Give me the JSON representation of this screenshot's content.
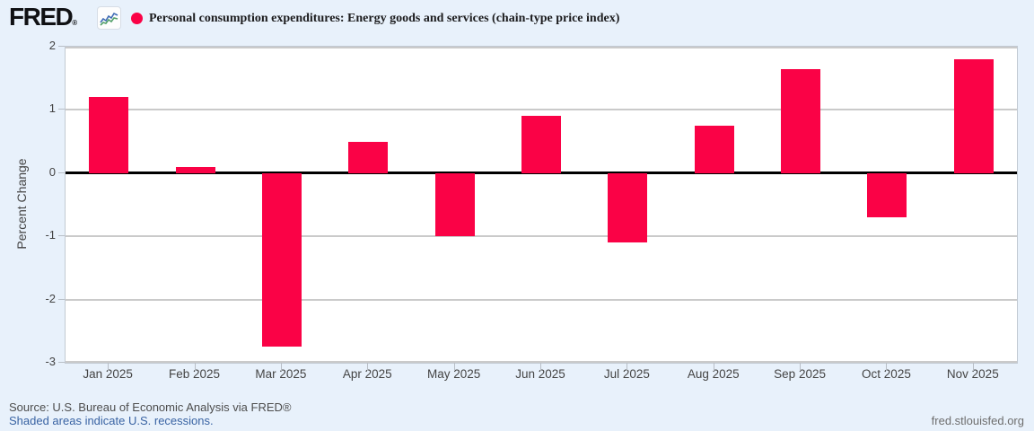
{
  "header": {
    "logo_text": "FRED",
    "logo_mark": "®",
    "title": "Personal consumption expenditures: Energy goods and services (chain-type price index)"
  },
  "chart_data": {
    "type": "bar",
    "title": "Personal consumption expenditures: Energy goods and services (chain-type price index)",
    "xlabel": "",
    "ylabel": "Percent Change",
    "ylim": [
      -3,
      2
    ],
    "yticks": [
      2,
      1,
      0,
      -1,
      -2,
      -3
    ],
    "categories": [
      "Jan 2025",
      "Feb 2025",
      "Mar 2025",
      "Apr 2025",
      "May 2025",
      "Jun 2025",
      "Jul 2025",
      "Aug 2025",
      "Sep 2025",
      "Oct 2025",
      "Nov 2025"
    ],
    "values": [
      1.2,
      0.1,
      -2.75,
      0.5,
      -1.0,
      0.9,
      -1.1,
      0.75,
      1.65,
      -0.7,
      1.8
    ],
    "bar_color": "#fa0246",
    "grid": true,
    "zero_line": true,
    "legend_position": "top-left"
  },
  "footer": {
    "source": "Source: U.S. Bureau of Economic Analysis via FRED®",
    "recession_note": "Shaded areas indicate U.S. recessions.",
    "site_link": "fred.stlouisfed.org"
  }
}
